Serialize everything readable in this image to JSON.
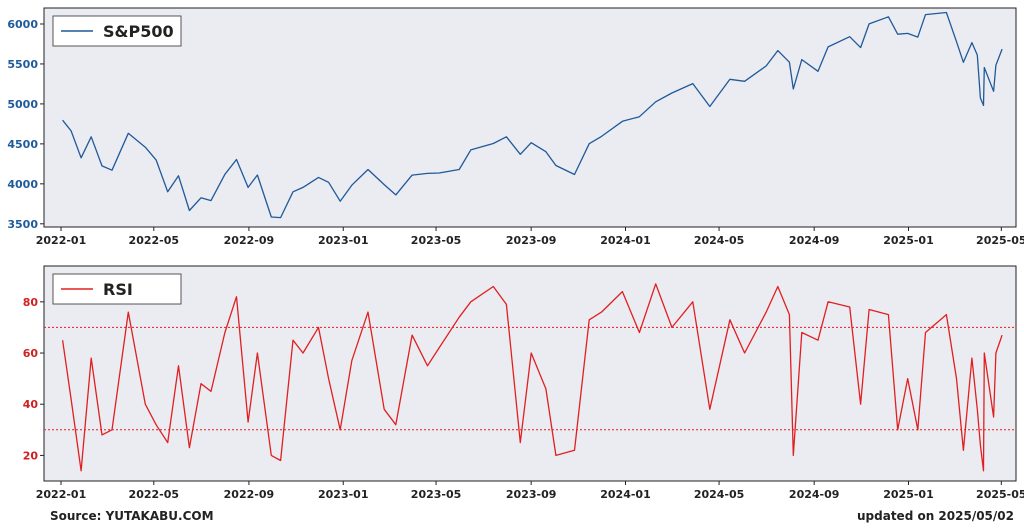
{
  "footer": {
    "source": "Source: YUTAKABU.COM",
    "updated": "updated on 2025/05/02"
  },
  "colors": {
    "panel_bg": "#ebebf2",
    "sp500_line": "#1f5a99",
    "sp500_ticks": "#1f5a99",
    "rsi_line": "#e02020",
    "rsi_ticks": "#d02020",
    "ref_lines": "#e02020"
  },
  "chart_data": [
    {
      "type": "line",
      "x_axis": "date",
      "xlim": [
        "2021-12-10",
        "2025-05-20"
      ],
      "ylim": [
        3460,
        6200
      ],
      "yticks": [
        3500,
        4000,
        4500,
        5000,
        5500,
        6000
      ],
      "xtick_labels": [
        "2022-01",
        "2022-05",
        "2022-09",
        "2023-01",
        "2023-05",
        "2023-09",
        "2024-01",
        "2024-05",
        "2024-09",
        "2025-01",
        "2025-05"
      ],
      "legend_placement": "top-left",
      "grid": false,
      "series": [
        {
          "name": "S&P500",
          "x": [
            "2022-01-03",
            "2022-01-14",
            "2022-01-27",
            "2022-02-09",
            "2022-02-23",
            "2022-03-08",
            "2022-03-29",
            "2022-04-20",
            "2022-05-04",
            "2022-05-19",
            "2022-06-02",
            "2022-06-16",
            "2022-07-01",
            "2022-07-14",
            "2022-08-01",
            "2022-08-16",
            "2022-08-31",
            "2022-09-12",
            "2022-09-30",
            "2022-10-12",
            "2022-10-28",
            "2022-11-10",
            "2022-11-30",
            "2022-12-13",
            "2022-12-28",
            "2023-01-12",
            "2023-02-02",
            "2023-02-23",
            "2023-03-10",
            "2023-03-31",
            "2023-04-20",
            "2023-05-05",
            "2023-05-31",
            "2023-06-15",
            "2023-07-14",
            "2023-07-31",
            "2023-08-18",
            "2023-09-01",
            "2023-09-20",
            "2023-10-03",
            "2023-10-27",
            "2023-11-15",
            "2023-12-01",
            "2023-12-28",
            "2024-01-19",
            "2024-02-09",
            "2024-03-01",
            "2024-03-28",
            "2024-04-19",
            "2024-05-15",
            "2024-06-03",
            "2024-07-01",
            "2024-07-16",
            "2024-07-31",
            "2024-08-05",
            "2024-08-16",
            "2024-09-06",
            "2024-09-19",
            "2024-10-17",
            "2024-10-31",
            "2024-11-11",
            "2024-12-06",
            "2024-12-18",
            "2024-12-31",
            "2025-01-13",
            "2025-01-23",
            "2025-02-19",
            "2025-03-04",
            "2025-03-13",
            "2025-03-24",
            "2025-03-31",
            "2025-04-04",
            "2025-04-08",
            "2025-04-09",
            "2025-04-21",
            "2025-04-24",
            "2025-05-02"
          ],
          "values": [
            4796,
            4662,
            4326,
            4588,
            4225,
            4171,
            4632,
            4459,
            4300,
            3900,
            4101,
            3666,
            3825,
            3790,
            4119,
            4305,
            3955,
            4110,
            3585,
            3577,
            3901,
            3956,
            4080,
            4019,
            3783,
            3983,
            4179,
            3991,
            3861,
            4109,
            4130,
            4136,
            4180,
            4425,
            4505,
            4589,
            4370,
            4515,
            4402,
            4229,
            4117,
            4502,
            4594,
            4783,
            4840,
            5026,
            5137,
            5254,
            4967,
            5308,
            5283,
            5475,
            5667,
            5522,
            5186,
            5554,
            5408,
            5713,
            5841,
            5705,
            6001,
            6090,
            5872,
            5882,
            5836,
            6118,
            6144,
            5778,
            5521,
            5767,
            5612,
            5074,
            4982,
            5456,
            5158,
            5484,
            5686
          ]
        }
      ]
    },
    {
      "type": "line",
      "x_axis": "date",
      "xlim": [
        "2021-12-10",
        "2025-05-20"
      ],
      "ylim": [
        10,
        94
      ],
      "yticks": [
        20,
        40,
        60,
        80
      ],
      "xtick_labels": [
        "2022-01",
        "2022-05",
        "2022-09",
        "2023-01",
        "2023-05",
        "2023-09",
        "2024-01",
        "2024-05",
        "2024-09",
        "2025-01",
        "2025-05"
      ],
      "reference_lines": [
        70,
        30
      ],
      "legend_placement": "top-left",
      "grid": false,
      "series": [
        {
          "name": "RSI",
          "x": [
            "2022-01-03",
            "2022-01-14",
            "2022-01-27",
            "2022-02-09",
            "2022-02-23",
            "2022-03-08",
            "2022-03-29",
            "2022-04-20",
            "2022-05-04",
            "2022-05-19",
            "2022-06-02",
            "2022-06-16",
            "2022-07-01",
            "2022-07-14",
            "2022-08-01",
            "2022-08-16",
            "2022-08-31",
            "2022-09-12",
            "2022-09-30",
            "2022-10-12",
            "2022-10-28",
            "2022-11-10",
            "2022-11-30",
            "2022-12-13",
            "2022-12-28",
            "2023-01-12",
            "2023-02-02",
            "2023-02-23",
            "2023-03-10",
            "2023-03-31",
            "2023-04-20",
            "2023-05-05",
            "2023-05-31",
            "2023-06-15",
            "2023-07-14",
            "2023-07-31",
            "2023-08-18",
            "2023-09-01",
            "2023-09-20",
            "2023-10-03",
            "2023-10-27",
            "2023-11-15",
            "2023-12-01",
            "2023-12-28",
            "2024-01-19",
            "2024-02-09",
            "2024-03-01",
            "2024-03-28",
            "2024-04-19",
            "2024-05-15",
            "2024-06-03",
            "2024-07-01",
            "2024-07-16",
            "2024-07-31",
            "2024-08-05",
            "2024-08-16",
            "2024-09-06",
            "2024-09-19",
            "2024-10-17",
            "2024-10-31",
            "2024-11-11",
            "2024-12-06",
            "2024-12-18",
            "2024-12-31",
            "2025-01-13",
            "2025-01-23",
            "2025-02-19",
            "2025-03-04",
            "2025-03-13",
            "2025-03-24",
            "2025-03-31",
            "2025-04-04",
            "2025-04-08",
            "2025-04-09",
            "2025-04-21",
            "2025-04-24",
            "2025-05-02"
          ],
          "values": [
            65,
            42,
            14,
            58,
            28,
            30,
            76,
            40,
            32,
            25,
            55,
            23,
            48,
            45,
            68,
            82,
            33,
            60,
            20,
            18,
            65,
            60,
            70,
            50,
            30,
            57,
            76,
            38,
            32,
            67,
            55,
            62,
            74,
            80,
            86,
            79,
            25,
            60,
            46,
            20,
            22,
            73,
            76,
            84,
            68,
            87,
            70,
            80,
            38,
            73,
            60,
            76,
            86,
            75,
            20,
            68,
            65,
            80,
            78,
            40,
            77,
            75,
            30,
            50,
            30,
            68,
            75,
            50,
            22,
            58,
            38,
            24,
            14,
            60,
            35,
            60,
            67
          ]
        }
      ]
    }
  ]
}
